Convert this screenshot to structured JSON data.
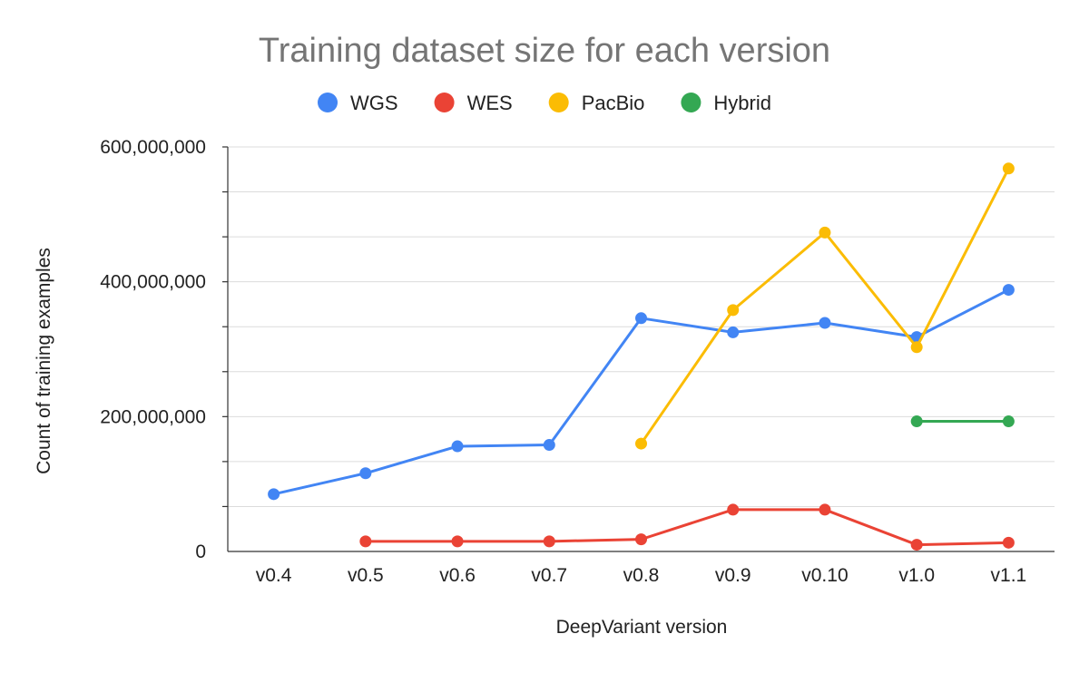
{
  "chart_data": {
    "type": "line",
    "title": "Training dataset size for each version",
    "xlabel": "DeepVariant version",
    "ylabel": "Count of training examples",
    "categories": [
      "v0.4",
      "v0.5",
      "v0.6",
      "v0.7",
      "v0.8",
      "v0.9",
      "v0.10",
      "v1.0",
      "v1.1"
    ],
    "ylim": [
      0,
      600000000
    ],
    "y_tick_values": [
      0,
      200000000,
      400000000,
      600000000
    ],
    "y_tick_labels": [
      "0",
      "200,000,000",
      "400,000,000",
      "600,000,000"
    ],
    "y_minor_tick_values": [
      66666667,
      133333333,
      266666667,
      333333333,
      466666667,
      533333333
    ],
    "grid": true,
    "legend_position": "top",
    "series": [
      {
        "name": "WGS",
        "color": "#4285F4",
        "values": [
          85000000,
          116000000,
          156000000,
          158000000,
          346000000,
          325000000,
          339000000,
          318000000,
          388000000
        ]
      },
      {
        "name": "WES",
        "color": "#EA4335",
        "values": [
          null,
          15000000,
          15000000,
          15000000,
          18000000,
          62000000,
          62000000,
          10000000,
          13000000
        ]
      },
      {
        "name": "PacBio",
        "color": "#FBBC04",
        "values": [
          null,
          null,
          null,
          null,
          160000000,
          358000000,
          473000000,
          303000000,
          568000000
        ]
      },
      {
        "name": "Hybrid",
        "color": "#34A853",
        "values": [
          null,
          null,
          null,
          null,
          null,
          null,
          null,
          193000000,
          193000000
        ]
      }
    ]
  }
}
